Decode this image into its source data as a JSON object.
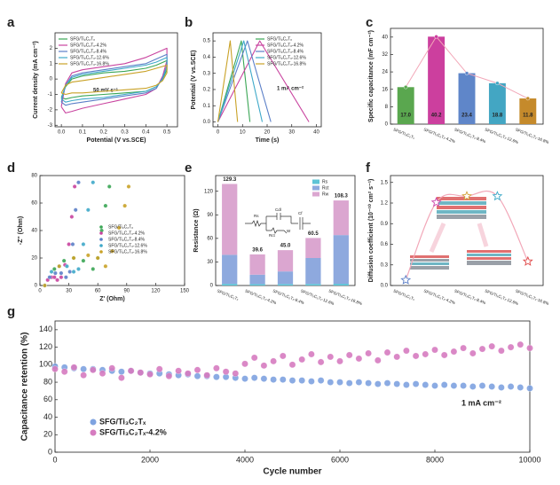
{
  "chart_data": [
    {
      "panel": "a",
      "type": "line",
      "xlabel": "Potential (V vs.SCE)",
      "ylabel": "Current density (mA cm⁻²)",
      "annotation": "50 mV s⁻¹",
      "xlim": [
        -0.03,
        0.55
      ],
      "ylim": [
        -3.1,
        3
      ],
      "xticks": [
        {
          "value": 0,
          "label": "0.0"
        },
        {
          "value": 0.1,
          "label": "0.1"
        },
        {
          "value": 0.2,
          "label": "0.2"
        },
        {
          "value": 0.3,
          "label": "0.3"
        },
        {
          "value": 0.4,
          "label": "0.4"
        },
        {
          "value": 0.5,
          "label": "0.5"
        }
      ],
      "yticks": [
        -3,
        -2,
        -1,
        0,
        1,
        2
      ],
      "legend": "upper left",
      "series": [
        {
          "name": "SFG/Ti₃C₂Tₓ",
          "color": "#3aa655",
          "x": [
            0,
            0.02,
            0.05,
            0.1,
            0.2,
            0.3,
            0.4,
            0.45,
            0.5,
            0.5,
            0.48,
            0.45,
            0.4,
            0.3,
            0.2,
            0.1,
            0.05,
            0.02,
            0
          ],
          "values": [
            -1.2,
            -0.5,
            0.0,
            0.2,
            0.4,
            0.5,
            0.7,
            0.9,
            1.2,
            0.6,
            0.0,
            -0.5,
            -0.8,
            -0.9,
            -1.0,
            -1.1,
            -1.2,
            -1.3,
            -1.2
          ]
        },
        {
          "name": "SFG/Ti₃C₂Tₓ-4.2%",
          "color": "#c9449f",
          "x": [
            0,
            0.02,
            0.05,
            0.1,
            0.2,
            0.3,
            0.4,
            0.45,
            0.5,
            0.5,
            0.48,
            0.45,
            0.4,
            0.3,
            0.2,
            0.1,
            0.05,
            0.02,
            0
          ],
          "values": [
            -1.8,
            -0.3,
            0.4,
            0.6,
            0.8,
            1.0,
            1.4,
            1.7,
            2.0,
            1.2,
            0.2,
            -0.6,
            -1.0,
            -1.3,
            -1.6,
            -1.9,
            -2.1,
            -2.2,
            -1.8
          ]
        },
        {
          "name": "SFG/Ti₃C₂Tₓ-8.4%",
          "color": "#5b7fc7",
          "x": [
            0,
            0.02,
            0.05,
            0.1,
            0.2,
            0.3,
            0.4,
            0.45,
            0.5,
            0.5,
            0.48,
            0.45,
            0.4,
            0.3,
            0.2,
            0.1,
            0.05,
            0.02,
            0
          ],
          "values": [
            -1.5,
            -0.4,
            0.2,
            0.4,
            0.6,
            0.8,
            1.0,
            1.3,
            1.6,
            0.9,
            0.1,
            -0.6,
            -0.9,
            -1.1,
            -1.3,
            -1.5,
            -1.6,
            -1.7,
            -1.5
          ]
        },
        {
          "name": "SFG/Ti₃C₂Tₓ-12.6%",
          "color": "#3fa9c9",
          "x": [
            0,
            0.02,
            0.05,
            0.1,
            0.2,
            0.3,
            0.4,
            0.45,
            0.5,
            0.5,
            0.48,
            0.45,
            0.4,
            0.3,
            0.2,
            0.1,
            0.05,
            0.02,
            0
          ],
          "values": [
            -1.3,
            -0.4,
            0.1,
            0.3,
            0.5,
            0.7,
            0.9,
            1.1,
            1.4,
            0.8,
            0.0,
            -0.5,
            -0.8,
            -1.0,
            -1.2,
            -1.3,
            -1.4,
            -1.5,
            -1.3
          ]
        },
        {
          "name": "SFG/Ti₃C₂Tₓ-16.8%",
          "color": "#c9a227",
          "x": [
            0,
            0.02,
            0.05,
            0.1,
            0.2,
            0.3,
            0.4,
            0.45,
            0.5,
            0.5,
            0.48,
            0.45,
            0.4,
            0.3,
            0.2,
            0.1,
            0.05,
            0.02,
            0
          ],
          "values": [
            -0.9,
            -0.4,
            -0.2,
            -0.1,
            0.1,
            0.3,
            0.5,
            0.7,
            0.9,
            0.4,
            -0.1,
            -0.4,
            -0.6,
            -0.7,
            -0.8,
            -0.9,
            -0.9,
            -1.0,
            -0.9
          ]
        }
      ]
    },
    {
      "panel": "b",
      "type": "line",
      "xlabel": "Time (s)",
      "ylabel": "Potential (V vs.SCE)",
      "annotation": "1 mA cm⁻²",
      "xlim": [
        -2,
        42
      ],
      "ylim": [
        -0.03,
        0.55
      ],
      "xticks": [
        0,
        10,
        20,
        30,
        40
      ],
      "yticks": [
        {
          "value": 0,
          "label": "0.0"
        },
        {
          "value": 0.1,
          "label": "0.1"
        },
        {
          "value": 0.2,
          "label": "0.2"
        },
        {
          "value": 0.3,
          "label": "0.3"
        },
        {
          "value": 0.4,
          "label": "0.4"
        },
        {
          "value": 0.5,
          "label": "0.5"
        }
      ],
      "legend": "upper right",
      "series": [
        {
          "name": "SFG/Ti₃C₂Tₓ",
          "color": "#3aa655",
          "x": [
            0,
            9.5,
            13
          ],
          "values": [
            0,
            0.5,
            0
          ]
        },
        {
          "name": "SFG/Ti₃C₂Tₓ-4.2%",
          "color": "#c9449f",
          "x": [
            0,
            17,
            37
          ],
          "values": [
            0,
            0.5,
            0
          ]
        },
        {
          "name": "SFG/Ti₃C₂Tₓ-8.4%",
          "color": "#5b7fc7",
          "x": [
            0,
            12,
            21.5
          ],
          "values": [
            0,
            0.5,
            0
          ]
        },
        {
          "name": "SFG/Ti₃C₂Tₓ-12.6%",
          "color": "#3fa9c9",
          "x": [
            0,
            10.5,
            18
          ],
          "values": [
            0,
            0.5,
            0
          ]
        },
        {
          "name": "SFG/Ti₃C₂Tₓ-16.8%",
          "color": "#c9a227",
          "x": [
            0,
            5,
            8
          ],
          "values": [
            0,
            0.5,
            0
          ]
        }
      ]
    },
    {
      "panel": "c",
      "type": "bar",
      "ylabel": "Specific capacitance (mF cm⁻²)",
      "categories": [
        "SFG/Ti₃C₂Tₓ",
        "SFG/Ti₃C₂Tₓ-4.2%",
        "SFG/Ti₃C₂Tₓ-8.4%",
        "SFG/Ti₃C₂Tₓ-12.6%",
        "SFG/Ti₃C₂Tₓ-16.8%"
      ],
      "values": [
        17.0,
        40.2,
        23.4,
        18.8,
        11.8
      ],
      "value_labels": [
        "17.0",
        "40.2",
        "23.4",
        "18.8",
        "11.8"
      ],
      "colors": [
        "#5aa74f",
        "#cc3f9e",
        "#5f86c9",
        "#43a6c3",
        "#c58a2b"
      ],
      "trend_color": "#f2a7b8",
      "ylim": [
        0,
        44
      ],
      "yticks": [
        0,
        8,
        16,
        24,
        32,
        40
      ]
    },
    {
      "panel": "d",
      "type": "scatter",
      "xlabel": "Z' (Ohm)",
      "ylabel": "-Z'' (Ohm)",
      "xlim": [
        0,
        150
      ],
      "ylim": [
        0,
        80
      ],
      "xticks": [
        0,
        30,
        60,
        90,
        120,
        150
      ],
      "yticks": [
        0,
        20,
        40,
        60,
        80
      ],
      "legend": "center right",
      "series": [
        {
          "name": "SFG/Ti₃C₂Tₓ",
          "color": "#3aa655",
          "x": [
            5,
            15,
            25,
            35,
            45,
            55,
            60,
            64,
            68,
            72
          ],
          "values": [
            0,
            12,
            18,
            20,
            18,
            12,
            20,
            40,
            58,
            72
          ]
        },
        {
          "name": "SFG/Ti₃C₂Tₓ-4.2%",
          "color": "#c9449f",
          "x": [
            5,
            8,
            12,
            15,
            18,
            22,
            26,
            30,
            33,
            36
          ],
          "values": [
            0,
            4,
            6,
            6,
            4,
            6,
            15,
            30,
            50,
            72
          ]
        },
        {
          "name": "SFG/Ti₃C₂Tₓ-8.4%",
          "color": "#5b7fc7",
          "x": [
            5,
            10,
            16,
            22,
            27,
            31,
            34,
            37,
            40
          ],
          "values": [
            0,
            6,
            9,
            9,
            6,
            10,
            30,
            55,
            75
          ]
        },
        {
          "name": "SFG/Ti₃C₂Tₓ-12.6%",
          "color": "#3fa9c9",
          "x": [
            5,
            12,
            20,
            28,
            35,
            40,
            45,
            50,
            55
          ],
          "values": [
            0,
            10,
            14,
            14,
            10,
            12,
            30,
            55,
            75
          ]
        },
        {
          "name": "SFG/Ti₃C₂Tₓ-16.8%",
          "color": "#c9a227",
          "x": [
            5,
            20,
            35,
            50,
            60,
            68,
            75,
            82,
            88,
            92
          ],
          "values": [
            0,
            14,
            20,
            22,
            20,
            14,
            25,
            42,
            58,
            72
          ]
        }
      ]
    },
    {
      "panel": "e",
      "type": "bar",
      "stacked": true,
      "ylabel": "Resistance (Ω)",
      "categories": [
        "SFG/Ti₃C₂Tₓ",
        "SFG/Ti₃C₂Tₓ-4.2%",
        "SFG/Ti₃C₂Tₓ-8.4%",
        "SFG/Ti₃C₂Tₓ-12.6%",
        "SFG/Ti₃C₂Tₓ-16.8%"
      ],
      "series": [
        {
          "name": "Rs",
          "color": "#5ec4d6",
          "values": [
            2.1,
            1.8,
            1.9,
            2.0,
            2.2
          ]
        },
        {
          "name": "Rct",
          "color": "#8ea9de",
          "values": [
            37,
            12,
            16,
            33,
            62
          ]
        },
        {
          "name": "Rw",
          "color": "#dba6d0",
          "values": [
            90.2,
            25.8,
            27.1,
            25.5,
            44.1
          ]
        }
      ],
      "totals": [
        "129.3",
        "39.6",
        "45.0",
        "60.5",
        "108.3"
      ],
      "circuit_labels": [
        "Rs",
        "Cdl",
        "Rct",
        "W",
        "Cf"
      ],
      "ylim": [
        0,
        140
      ],
      "yticks": [
        0,
        30,
        60,
        90,
        120
      ],
      "legend": "upper right"
    },
    {
      "panel": "f",
      "type": "line",
      "marker": "star",
      "ylabel": "Diffusion coefficient (10⁻¹⁰ cm² s⁻¹)",
      "categories": [
        "SFG/Ti₃C₂Tₓ",
        "SFG/Ti₃C₂Tₓ-4.2%",
        "SFG/Ti₃C₂Tₓ-8.4%",
        "SFG/Ti₃C₂Tₓ-12.6%",
        "SFG/Ti₃C₂Tₓ-16.8%"
      ],
      "values": [
        0.08,
        1.21,
        1.3,
        1.3,
        0.35
      ],
      "colors": [
        "#5b7fc7",
        "#cc44aa",
        "#d4a23a",
        "#3fa9c9",
        "#e04a4a"
      ],
      "line_color": "#f2a7b8",
      "ylim": [
        0,
        1.6
      ],
      "yticks": [
        {
          "value": 0,
          "label": "0.0"
        },
        {
          "value": 0.3,
          "label": "0.3"
        },
        {
          "value": 0.6,
          "label": "0.6"
        },
        {
          "value": 0.9,
          "label": "0.9"
        },
        {
          "value": 1.2,
          "label": "1.2"
        },
        {
          "value": 1.5,
          "label": "1.5"
        }
      ]
    },
    {
      "panel": "g",
      "type": "scatter",
      "xlabel": "Cycle number",
      "ylabel": "Capacitance retention (%)",
      "annotation": "1 mA cm⁻²",
      "xlim": [
        0,
        10000
      ],
      "ylim": [
        0,
        150
      ],
      "xticks": [
        0,
        2000,
        4000,
        6000,
        8000,
        10000
      ],
      "yticks": [
        0,
        20,
        40,
        60,
        80,
        100,
        120,
        140
      ],
      "legend": "lower left",
      "x": [
        0,
        200,
        400,
        600,
        800,
        1000,
        1200,
        1400,
        1600,
        1800,
        2000,
        2200,
        2400,
        2600,
        2800,
        3000,
        3200,
        3400,
        3600,
        3800,
        4000,
        4200,
        4400,
        4600,
        4800,
        5000,
        5200,
        5400,
        5600,
        5800,
        6000,
        6200,
        6400,
        6600,
        6800,
        7000,
        7200,
        7400,
        7600,
        7800,
        8000,
        8200,
        8400,
        8600,
        8800,
        9000,
        9200,
        9400,
        9600,
        9800,
        10000
      ],
      "series": [
        {
          "name": "SFG/Ti₃C₂Tₓ",
          "color": "#7fa3e0",
          "values": [
            98,
            97,
            96,
            95,
            95,
            94,
            93,
            92,
            93,
            91,
            90,
            90,
            89,
            88,
            89,
            87,
            87,
            86,
            86,
            85,
            84,
            85,
            84,
            83,
            83,
            82,
            82,
            81,
            82,
            80,
            80,
            79,
            80,
            79,
            78,
            79,
            78,
            77,
            78,
            77,
            76,
            77,
            76,
            76,
            75,
            76,
            75,
            74,
            75,
            74,
            73
          ]
        },
        {
          "name": "SFG/Ti₃C₂Tₓ-4.2%",
          "color": "#d67cc0",
          "values": [
            95,
            92,
            97,
            88,
            94,
            90,
            96,
            85,
            93,
            91,
            89,
            95,
            87,
            93,
            90,
            94,
            88,
            96,
            92,
            90,
            101,
            108,
            99,
            104,
            110,
            100,
            106,
            112,
            103,
            109,
            104,
            111,
            107,
            113,
            105,
            114,
            109,
            116,
            110,
            112,
            117,
            111,
            115,
            119,
            113,
            118,
            121,
            116,
            120,
            123,
            119
          ]
        }
      ]
    }
  ]
}
